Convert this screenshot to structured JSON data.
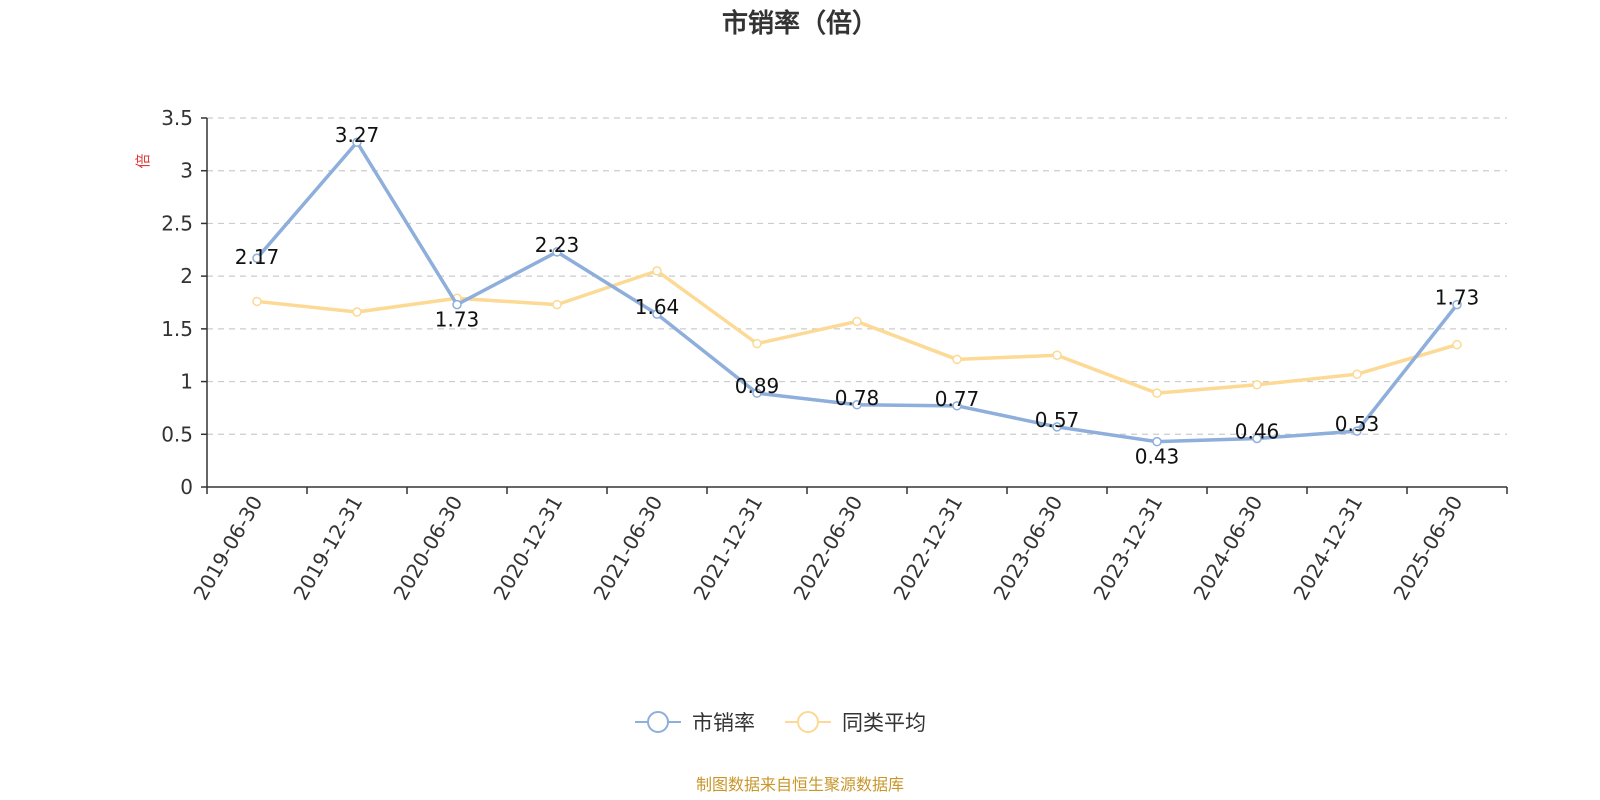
{
  "chart_data": {
    "type": "line",
    "title": "市销率（倍）",
    "y_unit": "倍",
    "categories": [
      "2019-06-30",
      "2019-12-31",
      "2020-06-30",
      "2020-12-31",
      "2021-06-30",
      "2021-12-31",
      "2022-06-30",
      "2022-12-31",
      "2023-06-30",
      "2023-12-31",
      "2024-06-30",
      "2024-12-31",
      "2025-06-30"
    ],
    "ylim": [
      0,
      3.5
    ],
    "y_ticks": [
      "0",
      "0.5",
      "1",
      "1.5",
      "2",
      "2.5",
      "3",
      "3.5"
    ],
    "grid": true,
    "legend_position": "bottom",
    "series": [
      {
        "name": "市销率",
        "color": "#8eaedb",
        "values": [
          2.17,
          3.27,
          1.73,
          2.23,
          1.64,
          0.89,
          0.78,
          0.77,
          0.57,
          0.43,
          0.46,
          0.53,
          1.73
        ],
        "data_labels": [
          "2.17",
          "3.27",
          "1.73",
          "2.23",
          "1.64",
          "0.89",
          "0.78",
          "0.77",
          "0.57",
          "0.43",
          "0.46",
          "0.53",
          "1.73"
        ]
      },
      {
        "name": "同类平均",
        "color": "#fcd994",
        "values": [
          1.76,
          1.66,
          1.79,
          1.73,
          2.05,
          1.36,
          1.57,
          1.21,
          1.25,
          0.89,
          0.97,
          1.07,
          1.35
        ]
      }
    ]
  },
  "source_note": "制图数据来自恒生聚源数据库"
}
